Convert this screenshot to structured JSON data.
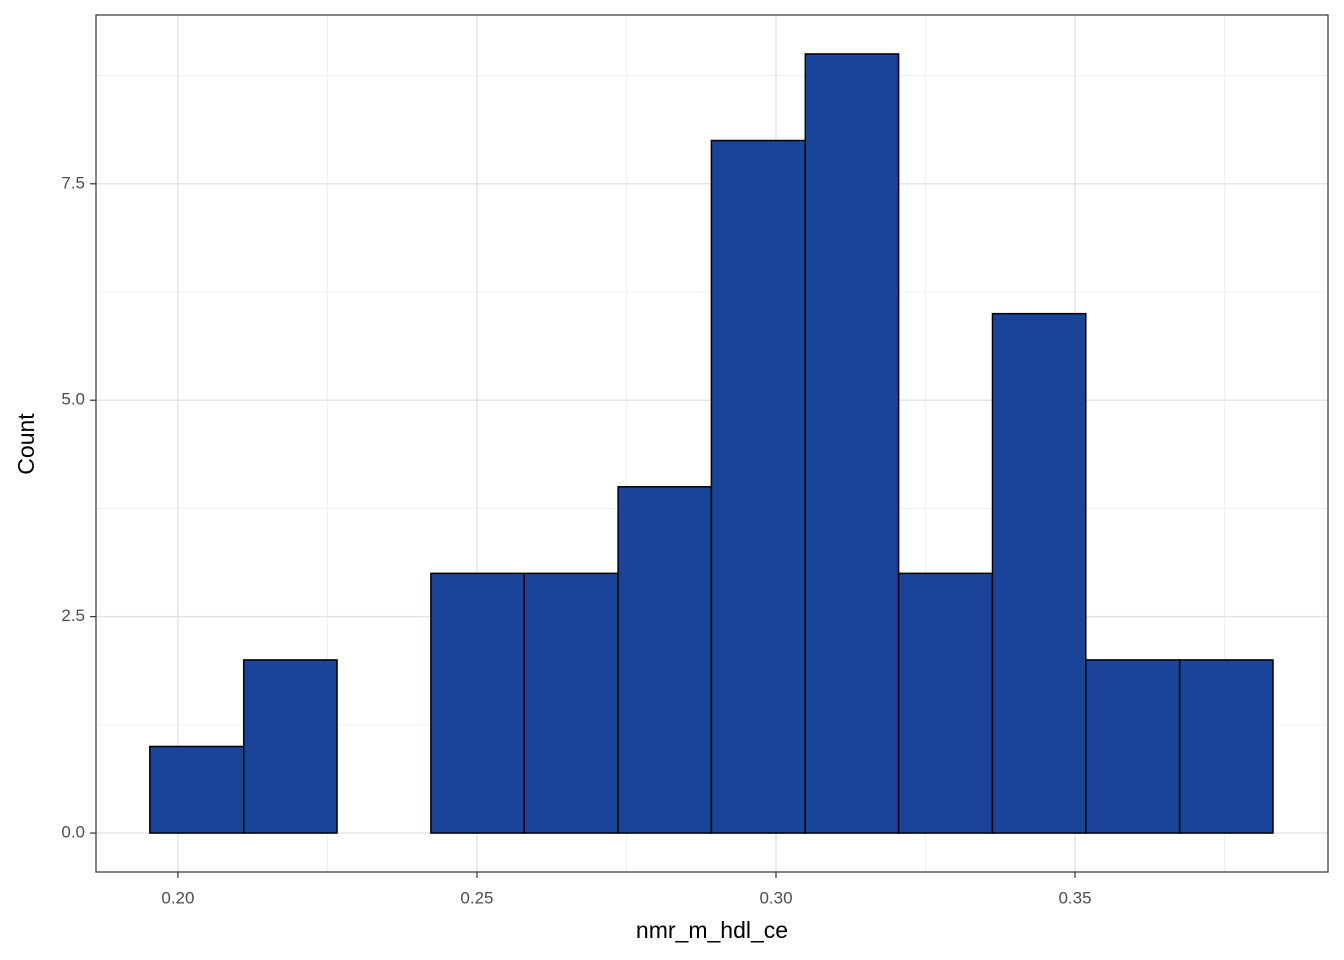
{
  "chart_data": {
    "type": "histogram",
    "x_label": "nmr_m_hdl_ce",
    "y_label": "Count",
    "bins": [
      0.1953,
      0.211,
      0.2266,
      0.2423,
      0.2579,
      0.2736,
      0.2892,
      0.3049,
      0.3205,
      0.3362,
      0.3518,
      0.3675,
      0.3831
    ],
    "values": [
      1,
      2,
      0,
      3,
      3,
      4,
      8,
      9,
      3,
      6,
      2,
      2
    ],
    "color": "#1a4499",
    "edge_color": "#000000",
    "xlim": [
      0.1863,
      0.3923
    ],
    "ylim": [
      -0.45,
      9.45
    ],
    "xticks": [
      {
        "value": 0.2,
        "label": "0.20"
      },
      0.25,
      {
        "value": 0.3,
        "label": "0.30"
      },
      0.35
    ],
    "yticks": [
      {
        "value": 0,
        "label": "0.0"
      },
      2.5,
      {
        "value": 5,
        "label": "5.0"
      },
      7.5
    ],
    "grid": true
  }
}
